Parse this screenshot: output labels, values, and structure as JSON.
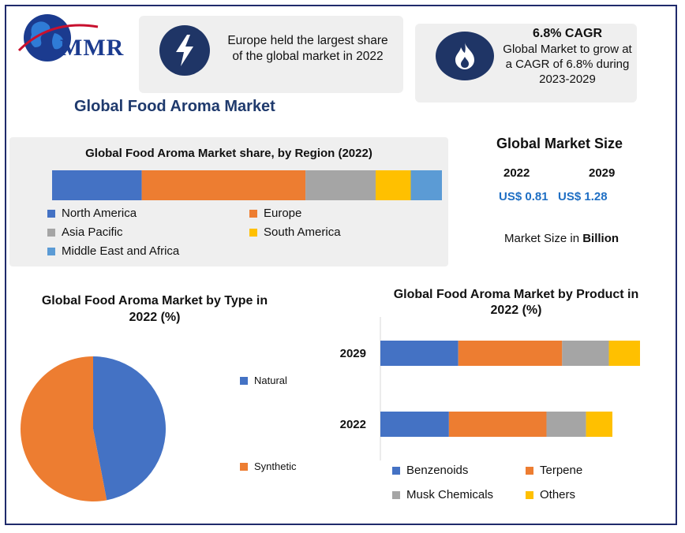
{
  "logo": {
    "text": "MMR"
  },
  "highlights": [
    {
      "icon": "lightning-icon",
      "text": "Europe held the largest share of the global market in 2022"
    },
    {
      "icon": "flame-icon",
      "title": "6.8% CAGR",
      "text": "Global Market to grow at a CAGR of 6.8% during 2023-2029"
    }
  ],
  "main_title": "Global Food Aroma Market",
  "market_size": {
    "heading": "Global Market Size",
    "years": [
      "2022",
      "2029"
    ],
    "values": [
      "US$ 0.81",
      "US$ 1.28"
    ],
    "note_prefix": "Market Size in ",
    "note_unit": "Billion"
  },
  "colors": {
    "blue": "#4472c4",
    "orange": "#ed7d31",
    "gray": "#a5a5a5",
    "yellow": "#ffc000",
    "light_blue": "#5b9bd5",
    "title": "#1f3a6d"
  },
  "chart_data": [
    {
      "type": "bar",
      "title": "Global Food Aroma Market share, by Region (2022)",
      "orientation": "horizontal-stacked",
      "series": [
        {
          "name": "North America",
          "values": [
            23
          ],
          "color": "#4472c4"
        },
        {
          "name": "Europe",
          "values": [
            42
          ],
          "color": "#ed7d31"
        },
        {
          "name": "Asia Pacific",
          "values": [
            18
          ],
          "color": "#a5a5a5"
        },
        {
          "name": "South America",
          "values": [
            9
          ],
          "color": "#ffc000"
        },
        {
          "name": "Middle East and Africa",
          "values": [
            8
          ],
          "color": "#5b9bd5"
        }
      ],
      "legend": "bottom"
    },
    {
      "type": "pie",
      "title": "Global Food Aroma Market by Type in 2022 (%)",
      "labels": [
        "Natural",
        "Synthetic"
      ],
      "values": [
        47,
        53
      ],
      "colors": [
        "#4472c4",
        "#ed7d31"
      ],
      "legend": "right"
    },
    {
      "type": "bar",
      "title": "Global Food Aroma Market by Product in 2022 (%)",
      "orientation": "horizontal-stacked",
      "categories": [
        "2029",
        "2022"
      ],
      "series": [
        {
          "name": "Benzenoids",
          "values": [
            0.3,
            0.26
          ],
          "color": "#4472c4"
        },
        {
          "name": "Terpene",
          "values": [
            0.4,
            0.37
          ],
          "color": "#ed7d31"
        },
        {
          "name": "Musk Chemicals",
          "values": [
            0.18,
            0.15
          ],
          "color": "#a5a5a5"
        },
        {
          "name": "Others",
          "values": [
            0.12,
            0.1
          ],
          "color": "#ffc000"
        }
      ],
      "legend": "bottom"
    }
  ]
}
